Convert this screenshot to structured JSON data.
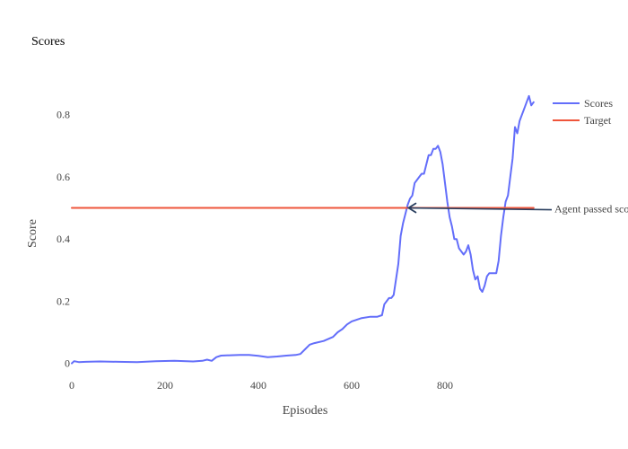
{
  "chart_data": {
    "type": "line",
    "title": "Scores",
    "xlabel": "Episodes",
    "ylabel": "Score",
    "xlim": [
      0,
      1000
    ],
    "ylim": [
      -0.03,
      0.88
    ],
    "xticks": [
      0,
      200,
      400,
      600,
      800
    ],
    "xtick_labels": [
      "0",
      "200",
      "400",
      "600",
      "800"
    ],
    "yticks": [
      0,
      0.2,
      0.4,
      0.6,
      0.8
    ],
    "ytick_labels": [
      "0",
      "0.2",
      "0.4",
      "0.6",
      "0.8"
    ],
    "grid": false,
    "legend_position": "top-right",
    "series": [
      {
        "name": "Scores",
        "color": "#636efa",
        "x": [
          0,
          5,
          15,
          30,
          60,
          100,
          140,
          180,
          220,
          260,
          280,
          290,
          300,
          310,
          320,
          340,
          360,
          380,
          400,
          420,
          440,
          460,
          470,
          480,
          490,
          500,
          510,
          520,
          540,
          560,
          570,
          580,
          590,
          600,
          610,
          620,
          640,
          655,
          665,
          670,
          675,
          680,
          685,
          690,
          695,
          700,
          705,
          710,
          715,
          720,
          725,
          730,
          735,
          740,
          745,
          750,
          755,
          760,
          765,
          770,
          775,
          780,
          785,
          790,
          795,
          800,
          805,
          810,
          815,
          820,
          825,
          830,
          835,
          840,
          845,
          850,
          855,
          860,
          865,
          870,
          875,
          880,
          885,
          890,
          895,
          900,
          905,
          910,
          915,
          920,
          925,
          930,
          935,
          940,
          945,
          950,
          955,
          960,
          965,
          970,
          975,
          980,
          985,
          990
        ],
        "values": [
          0.0,
          0.007,
          0.004,
          0.005,
          0.006,
          0.005,
          0.004,
          0.007,
          0.008,
          0.006,
          0.008,
          0.012,
          0.008,
          0.02,
          0.025,
          0.026,
          0.027,
          0.027,
          0.024,
          0.02,
          0.022,
          0.025,
          0.026,
          0.027,
          0.03,
          0.045,
          0.06,
          0.065,
          0.072,
          0.085,
          0.1,
          0.11,
          0.125,
          0.135,
          0.14,
          0.145,
          0.15,
          0.15,
          0.155,
          0.19,
          0.2,
          0.21,
          0.21,
          0.22,
          0.27,
          0.32,
          0.41,
          0.45,
          0.48,
          0.51,
          0.53,
          0.54,
          0.58,
          0.59,
          0.6,
          0.61,
          0.61,
          0.64,
          0.67,
          0.67,
          0.69,
          0.69,
          0.7,
          0.68,
          0.64,
          0.58,
          0.52,
          0.47,
          0.44,
          0.4,
          0.4,
          0.37,
          0.36,
          0.35,
          0.36,
          0.38,
          0.35,
          0.3,
          0.27,
          0.28,
          0.24,
          0.23,
          0.25,
          0.28,
          0.29,
          0.29,
          0.29,
          0.29,
          0.33,
          0.41,
          0.47,
          0.52,
          0.54,
          0.6,
          0.66,
          0.76,
          0.74,
          0.78,
          0.8,
          0.82,
          0.84,
          0.86,
          0.83,
          0.84
        ]
      },
      {
        "name": "Target",
        "color": "#ef553b",
        "x": [
          0,
          990
        ],
        "values": [
          0.5,
          0.5
        ]
      }
    ],
    "annotations": [
      {
        "text": "Agent passed sco",
        "x": 720,
        "y": 0.5,
        "color": "#2a3f5f"
      }
    ]
  }
}
